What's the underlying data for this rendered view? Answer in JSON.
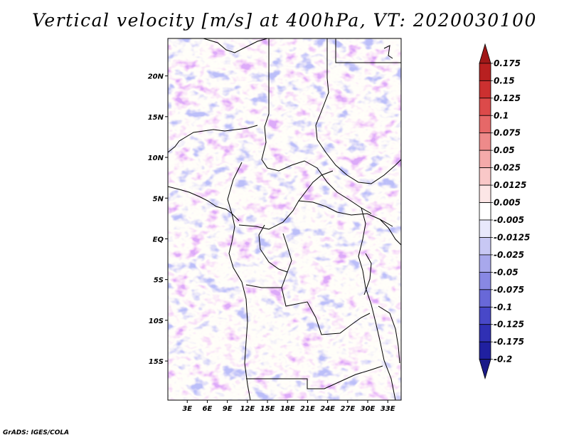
{
  "chart_data": {
    "type": "heatmap",
    "title": "Vertical velocity [m/s] at 400hPa, VT: 2020030100",
    "variable": "Vertical velocity",
    "units": "m/s",
    "level": "400hPa",
    "valid_time": "2020030100",
    "xlabel": "",
    "ylabel": "",
    "x_ticks": [
      "3E",
      "6E",
      "9E",
      "12E",
      "15E",
      "18E",
      "21E",
      "24E",
      "27E",
      "30E",
      "33E"
    ],
    "x_tick_values": [
      3,
      6,
      9,
      12,
      15,
      18,
      21,
      24,
      27,
      30,
      33
    ],
    "y_ticks": [
      "20N",
      "15N",
      "10N",
      "5N",
      "EQ",
      "5S",
      "10S",
      "15S"
    ],
    "y_tick_values": [
      20,
      15,
      10,
      5,
      0,
      -5,
      -10,
      -15
    ],
    "xlim": [
      0.1,
      35.0
    ],
    "ylim": [
      -19.8,
      24.6
    ],
    "colorbar": {
      "labels": [
        "0.175",
        "0.15",
        "0.125",
        "0.1",
        "0.075",
        "0.05",
        "0.025",
        "0.0125",
        "0.005",
        "-0.005",
        "-0.0125",
        "-0.025",
        "-0.05",
        "-0.075",
        "-0.1",
        "-0.125",
        "-0.175",
        "-0.2"
      ],
      "colors": [
        "#a01818",
        "#b82020",
        "#cc3030",
        "#dc4a4a",
        "#e66868",
        "#ee8a8a",
        "#f4aaaa",
        "#f9c8c8",
        "#fce6e6",
        "#ffffff",
        "#e8e8fb",
        "#c8c8f4",
        "#a8a8ec",
        "#8888e4",
        "#6868d8",
        "#4848c8",
        "#3030b4",
        "#2020a0",
        "#1a1a88"
      ]
    },
    "extend": "both"
  },
  "footer": {
    "credit": "GrADS: IGES/COLA"
  }
}
